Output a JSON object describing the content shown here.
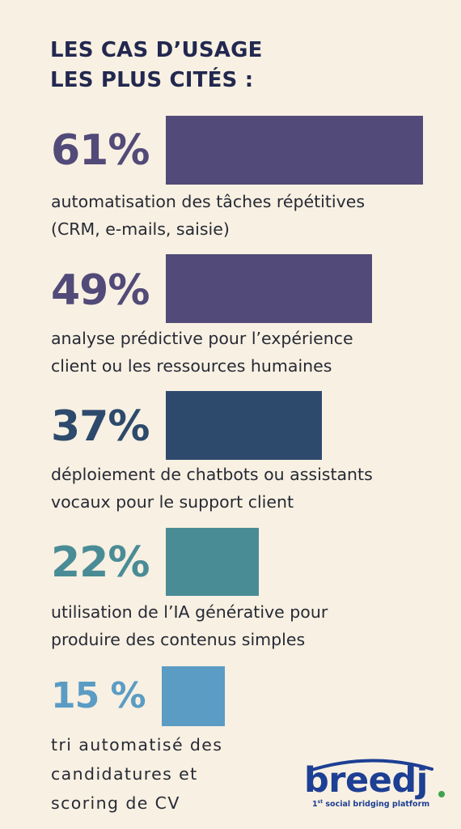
{
  "title": {
    "line1": "LES CAS D’USAGE",
    "line2": "LES PLUS CITÉS :"
  },
  "chart_data": {
    "type": "bar",
    "orientation": "horizontal",
    "title": "LES CAS D’USAGE LES PLUS CITÉS :",
    "value_labels": [
      "61%",
      "49%",
      "37%",
      "22%",
      "15 %"
    ],
    "values": [
      61,
      49,
      37,
      22,
      15
    ],
    "categories": [
      "automatisation des tâches répétitives (CRM, e-mails, saisie)",
      "analyse prédictive pour l’expérience client ou les ressources humaines",
      "déploiement de chatbots ou assistants vocaux pour le support client",
      "utilisation de l’IA générative pour produire des contenus simples",
      "tri automatisé des candidatures et scoring de CV"
    ],
    "category_lines": [
      [
        "automatisation des tâches répétitives",
        "(CRM, e-mails, saisie)"
      ],
      [
        "analyse prédictive pour l’expérience",
        "client ou les ressources humaines"
      ],
      [
        "déploiement de chatbots ou assistants",
        "vocaux pour le support client"
      ],
      [
        "utilisation de l’IA générative pour",
        "produire des contenus simples"
      ],
      [
        "tri automatisé des",
        "candidatures et",
        "scoring de CV"
      ]
    ],
    "colors": [
      "#524a78",
      "#524a78",
      "#2d4a6c",
      "#4a8c96",
      "#5b9cc4"
    ],
    "xlim": [
      0,
      61
    ]
  },
  "logo": {
    "word": "breedj",
    "tagline_sup": "st",
    "tagline_prefix": "1",
    "tagline_rest": " social bridging platform",
    "dot_color": "#3fa34d",
    "brand_color": "#1d3f94"
  }
}
